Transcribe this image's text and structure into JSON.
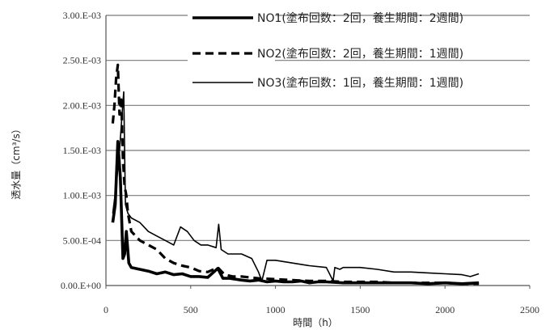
{
  "chart_data": {
    "type": "line",
    "title": "",
    "xlabel": "時間（h）",
    "ylabel": "透水量（cm³/s）",
    "xlim": [
      0,
      2500
    ],
    "ylim": [
      0,
      0.003
    ],
    "xticks": [
      0,
      500,
      1000,
      1500,
      2000,
      2500
    ],
    "xtick_labels": [
      "0",
      "500",
      "1000",
      "1500",
      "2000",
      "2500"
    ],
    "yticks": [
      0,
      0.0005,
      0.001,
      0.0015,
      0.002,
      0.0025,
      0.003
    ],
    "ytick_labels": [
      "0.00.E+00",
      "5.00.E-04",
      "1.00.E-03",
      "1.50.E-03",
      "2.00.E-03",
      "2.50.E-03",
      "3.00.E-03"
    ],
    "grid": "horizontal",
    "legend_position": "top-right",
    "series": [
      {
        "name": "NO1(塗布回数：2回，養生期間：2週間)",
        "style": "thick-solid",
        "color": "#000000",
        "x": [
          40,
          55,
          70,
          85,
          100,
          110,
          120,
          135,
          150,
          200,
          250,
          300,
          350,
          400,
          450,
          500,
          550,
          600,
          660,
          690,
          730,
          800,
          850,
          900,
          950,
          1000,
          1050,
          1100,
          1150,
          1200,
          1250,
          1300,
          1400,
          1500,
          1600,
          1700,
          1800,
          1900,
          2000,
          2100,
          2200
        ],
        "y": [
          0.0007,
          0.0009,
          0.0016,
          0.0012,
          0.0003,
          0.00035,
          0.0006,
          0.00025,
          0.0002,
          0.00018,
          0.00016,
          0.00013,
          0.00015,
          0.00012,
          0.00013,
          0.0001,
          0.0001,
          9e-05,
          0.00019,
          8e-05,
          8e-05,
          6e-05,
          5e-05,
          6e-05,
          4e-05,
          5e-05,
          4e-05,
          4e-05,
          5e-05,
          3e-05,
          4e-05,
          4e-05,
          3e-05,
          3e-05,
          3e-05,
          3e-05,
          3e-05,
          2e-05,
          3e-05,
          2e-05,
          3e-05
        ]
      },
      {
        "name": "NO2(塗布回数：2回，養生期間：1週間)",
        "style": "dashed",
        "color": "#000000",
        "x": [
          40,
          50,
          60,
          70,
          80,
          90,
          100,
          110,
          120,
          130,
          150,
          200,
          250,
          300,
          350,
          400,
          450,
          500,
          550,
          600,
          660,
          700,
          750,
          800,
          900,
          1000,
          1100,
          1200,
          1300,
          1400,
          1500,
          1600,
          1700,
          1800,
          1900,
          2000,
          2100,
          2200
        ],
        "y": [
          0.0018,
          0.002,
          0.0023,
          0.00245,
          0.0019,
          0.0021,
          0.0014,
          0.0011,
          0.001,
          0.0008,
          0.0006,
          0.0005,
          0.00045,
          0.0004,
          0.0003,
          0.00025,
          0.00022,
          0.0002,
          0.00016,
          0.00015,
          0.0002,
          0.00012,
          0.0001,
          0.0001,
          8e-05,
          7e-05,
          6e-05,
          5e-05,
          5e-05,
          4e-05,
          4e-05,
          4e-05,
          3e-05,
          3e-05,
          3e-05,
          3e-05,
          2e-05,
          2e-05
        ]
      },
      {
        "name": "NO3(塗布回数：1回，養生期間：1週間)",
        "style": "thin-solid",
        "color": "#000000",
        "x": [
          40,
          60,
          80,
          95,
          105,
          115,
          130,
          150,
          200,
          250,
          300,
          350,
          400,
          440,
          480,
          520,
          560,
          600,
          650,
          665,
          680,
          720,
          800,
          860,
          900,
          920,
          950,
          1000,
          1100,
          1200,
          1300,
          1340,
          1350,
          1380,
          1400,
          1500,
          1600,
          1700,
          1800,
          1900,
          2000,
          2100,
          2150,
          2200
        ],
        "y": [
          0.0008,
          0.0011,
          0.0015,
          0.0019,
          0.00215,
          0.0009,
          0.0008,
          0.00075,
          0.0007,
          0.0006,
          0.00055,
          0.0005,
          0.00045,
          0.00065,
          0.0006,
          0.0005,
          0.00045,
          0.00045,
          0.00042,
          0.00068,
          0.0004,
          0.00035,
          0.00035,
          0.0003,
          0.00015,
          5e-05,
          0.00028,
          0.00028,
          0.00025,
          0.00022,
          0.0002,
          5e-05,
          0.0002,
          0.00018,
          0.0002,
          0.0002,
          0.00018,
          0.00015,
          0.00015,
          0.00014,
          0.00013,
          0.00012,
          0.0001,
          0.00013
        ]
      }
    ]
  }
}
